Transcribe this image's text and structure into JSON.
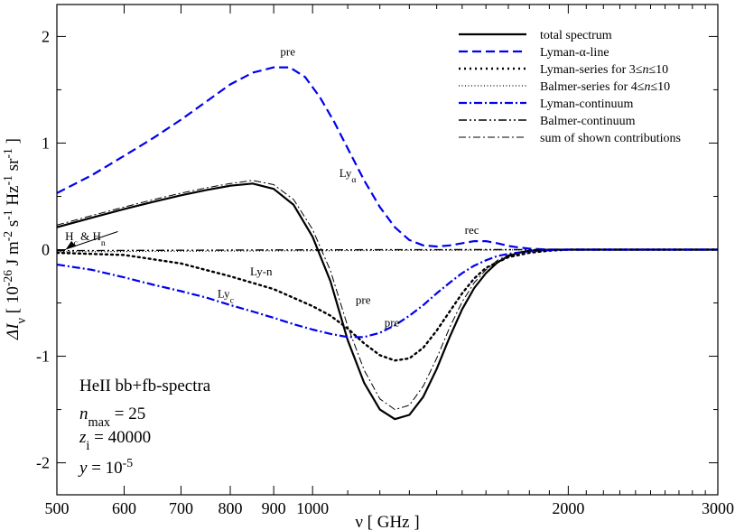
{
  "chart_data": {
    "type": "line",
    "x_scale": "log",
    "xlim": [
      500,
      3000
    ],
    "ylim": [
      -2.3,
      2.3
    ],
    "xticks": [
      500,
      600,
      700,
      800,
      900,
      1000,
      2000,
      3000
    ],
    "yticks": [
      -2,
      -1,
      0,
      1,
      2
    ],
    "xlabel": {
      "main": "ν [ GHz ]"
    },
    "ylabel": {
      "main": "ΔI",
      "sub": "ν",
      "units": "[ 10",
      "exp": "-26",
      "rest": " J m",
      "e1": "-2",
      "s": " s",
      "e2": "-1",
      "hz": " Hz",
      "e3": "-1",
      "sr": " sr",
      "e4": "-1",
      "close": " ]"
    },
    "series": [
      {
        "name": "total spectrum",
        "color": "#000000",
        "dash": "solid",
        "width": 2.2,
        "x": [
          500,
          550,
          600,
          650,
          700,
          750,
          800,
          850,
          900,
          950,
          1000,
          1050,
          1100,
          1150,
          1200,
          1250,
          1300,
          1350,
          1400,
          1450,
          1500,
          1550,
          1600,
          1650,
          1700,
          1750,
          1800,
          1900,
          2000,
          2200,
          2500,
          3000
        ],
        "y": [
          0.21,
          0.3,
          0.38,
          0.45,
          0.51,
          0.56,
          0.6,
          0.62,
          0.57,
          0.42,
          0.12,
          -0.3,
          -0.85,
          -1.25,
          -1.5,
          -1.59,
          -1.55,
          -1.38,
          -1.12,
          -0.82,
          -0.56,
          -0.36,
          -0.22,
          -0.12,
          -0.06,
          -0.03,
          -0.01,
          0.0,
          0.0,
          0.0,
          0.0,
          0.0
        ]
      },
      {
        "name": "Lyman-α-line",
        "color": "#0000ee",
        "dash": "10,5",
        "width": 2.2,
        "x": [
          500,
          550,
          600,
          650,
          700,
          750,
          800,
          850,
          900,
          940,
          980,
          1020,
          1060,
          1100,
          1150,
          1200,
          1250,
          1300,
          1350,
          1400,
          1450,
          1500,
          1550,
          1600,
          1650,
          1700,
          1750,
          1800,
          1900,
          2000,
          3000
        ],
        "y": [
          0.53,
          0.7,
          0.88,
          1.05,
          1.22,
          1.39,
          1.55,
          1.66,
          1.71,
          1.71,
          1.62,
          1.43,
          1.2,
          0.95,
          0.65,
          0.4,
          0.21,
          0.09,
          0.04,
          0.03,
          0.04,
          0.06,
          0.08,
          0.08,
          0.06,
          0.035,
          0.02,
          0.01,
          0.0,
          0.0,
          0.0
        ]
      },
      {
        "name": "Lyman-series for 3≤n≤10",
        "color": "#000000",
        "dash": "2,4",
        "width": 2.4,
        "x": [
          500,
          600,
          700,
          800,
          900,
          1000,
          1050,
          1100,
          1150,
          1200,
          1250,
          1300,
          1350,
          1400,
          1450,
          1500,
          1550,
          1600,
          1700,
          1800,
          1900,
          2000,
          3000
        ],
        "y": [
          -0.03,
          -0.05,
          -0.13,
          -0.25,
          -0.37,
          -0.53,
          -0.62,
          -0.74,
          -0.88,
          -0.99,
          -1.04,
          -1.02,
          -0.92,
          -0.76,
          -0.58,
          -0.41,
          -0.27,
          -0.17,
          -0.07,
          -0.03,
          -0.01,
          0.0,
          0.0
        ]
      },
      {
        "name": "Balmer-series for 4≤n≤10",
        "color": "#000000",
        "dash": "1,2.5",
        "width": 1.2,
        "x": [
          500,
          700,
          1000,
          1500,
          2000,
          3000
        ],
        "y": [
          -0.02,
          -0.015,
          -0.01,
          -0.005,
          0.0,
          0.0
        ]
      },
      {
        "name": "Lyman-continuum",
        "color": "#0000ee",
        "dash": "9,3,2,3",
        "width": 2.2,
        "x": [
          500,
          550,
          600,
          650,
          700,
          750,
          800,
          850,
          900,
          950,
          1000,
          1050,
          1100,
          1150,
          1200,
          1250,
          1300,
          1350,
          1400,
          1450,
          1500,
          1550,
          1600,
          1650,
          1700,
          1800,
          1900,
          2000,
          3000
        ],
        "y": [
          -0.14,
          -0.19,
          -0.26,
          -0.33,
          -0.39,
          -0.45,
          -0.52,
          -0.58,
          -0.64,
          -0.7,
          -0.75,
          -0.79,
          -0.82,
          -0.82,
          -0.78,
          -0.71,
          -0.62,
          -0.52,
          -0.41,
          -0.31,
          -0.22,
          -0.15,
          -0.1,
          -0.06,
          -0.04,
          -0.015,
          -0.005,
          0.0,
          0.0
        ]
      },
      {
        "name": "Balmer-continuum",
        "color": "#000000",
        "dash": "9,3,2,3,2,3",
        "width": 1.4,
        "x": [
          500,
          600,
          700,
          800,
          1000,
          1500,
          2000,
          3000
        ],
        "y": [
          -0.01,
          -0.008,
          -0.006,
          -0.004,
          -0.002,
          0.0,
          0.0,
          0.0
        ]
      },
      {
        "name": "sum of shown contributions",
        "color": "#000000",
        "dash": "8,3,2,3",
        "width": 1.0,
        "x": [
          500,
          550,
          600,
          650,
          700,
          750,
          800,
          850,
          900,
          950,
          1000,
          1050,
          1100,
          1150,
          1200,
          1250,
          1300,
          1350,
          1400,
          1450,
          1500,
          1550,
          1600,
          1650,
          1700,
          1750,
          1800,
          1900,
          2000,
          2200,
          2500,
          3000
        ],
        "y": [
          0.23,
          0.32,
          0.4,
          0.47,
          0.53,
          0.58,
          0.62,
          0.65,
          0.61,
          0.47,
          0.19,
          -0.2,
          -0.72,
          -1.13,
          -1.4,
          -1.5,
          -1.46,
          -1.28,
          -1.02,
          -0.73,
          -0.49,
          -0.31,
          -0.19,
          -0.1,
          -0.05,
          -0.025,
          -0.01,
          0.0,
          0.0,
          0.0,
          0.0,
          0.0
        ]
      }
    ],
    "legend": {
      "position": "top-right"
    },
    "annotations": [
      {
        "text": "pre",
        "x": 935,
        "y": 1.82
      },
      {
        "text": "Ly",
        "sub": "α",
        "x": 1100,
        "y": 0.68
      },
      {
        "text": "rec",
        "x": 1540,
        "y": 0.15
      },
      {
        "text": "Ly-n",
        "x": 870,
        "y": -0.24
      },
      {
        "text": "Ly",
        "sub": "c",
        "x": 790,
        "y": -0.45
      },
      {
        "text": "pre",
        "x": 1147,
        "y": -0.51
      },
      {
        "text": "pre",
        "x": 1240,
        "y": -0.72
      },
      {
        "text": "H",
        "sub": "c",
        "mid": " & H",
        "sub2": "n",
        "x": 540,
        "y": 0.09
      }
    ],
    "info_box": {
      "title": "HeII bb+fb-spectra",
      "nmax": "n",
      "nmax_sub": "max",
      "nmax_val": " = 25",
      "zi": "z",
      "zi_sub": "i",
      "zi_val": " = 40000",
      "y": "y",
      "y_val": " = 10",
      "y_exp": "-5"
    }
  }
}
